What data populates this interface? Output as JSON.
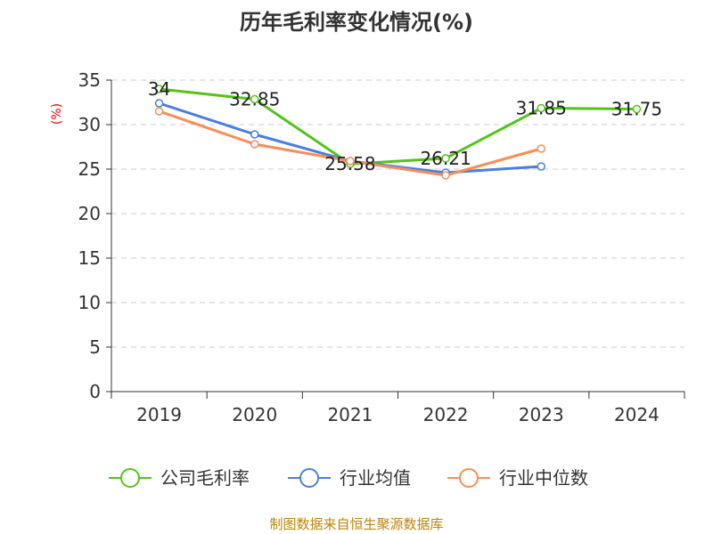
{
  "source_text": "制图数据来自恒生聚源数据库",
  "colors": {
    "gross_margin": "#52c41a",
    "industry_avg": "#4a7fe0",
    "industry_median": "#f58e5a",
    "grid": "#cccccc",
    "axis": "#333333",
    "axis_label": "#ff0000",
    "source": "#b8860b"
  },
  "chart_data": {
    "type": "line",
    "title": "历年毛利率变化情况(%)",
    "xlabel": "",
    "ylabel": "(%)",
    "ylim": [
      0,
      35
    ],
    "yticks": [
      0,
      5,
      10,
      15,
      20,
      25,
      30,
      35
    ],
    "categories": [
      "2019",
      "2020",
      "2021",
      "2022",
      "2023",
      "2024"
    ],
    "grid": "horizontal dashed",
    "legend_position": "bottom",
    "series": [
      {
        "name": "公司毛利率",
        "color": "#52c41a",
        "values": [
          34,
          32.85,
          25.58,
          26.21,
          31.85,
          31.75
        ],
        "labels": [
          "34",
          "32.85",
          "25.58",
          "26.21",
          "31.85",
          "31.75"
        ],
        "show_labels": true
      },
      {
        "name": "行业均值",
        "color": "#4a7fe0",
        "values": [
          32.4,
          28.9,
          25.9,
          24.6,
          25.3,
          null
        ],
        "show_labels": false
      },
      {
        "name": "行业中位数",
        "color": "#f58e5a",
        "values": [
          31.5,
          27.8,
          25.9,
          24.3,
          27.3,
          null
        ],
        "show_labels": false
      }
    ]
  }
}
